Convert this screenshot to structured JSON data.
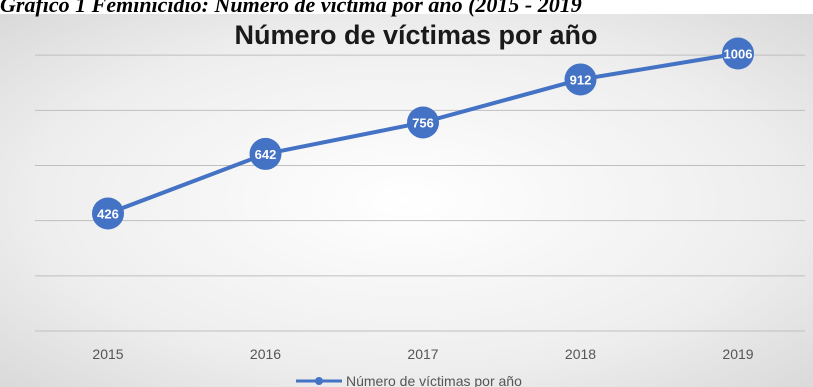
{
  "caption": "Gráfico 1 Feminicidio: Número de víctima por año (2015 - 2019",
  "colors": {
    "series": "#4472C4",
    "gridline": "#bfbfbf",
    "axis_label": "#555555",
    "background_center": "#ffffff",
    "background_edge": "#d6d6d6"
  },
  "chart_data": {
    "type": "line",
    "title": "Número de víctimas por año",
    "xlabel": "",
    "ylabel": "",
    "categories": [
      "2015",
      "2016",
      "2017",
      "2018",
      "2019"
    ],
    "series": [
      {
        "name": "Número de víctimas por año",
        "values": [
          426,
          642,
          756,
          912,
          1006
        ],
        "data_labels": [
          "426",
          "642",
          "756",
          "912",
          "1006"
        ]
      }
    ],
    "ylim": [
      0,
      1200
    ],
    "yticks": [
      0,
      200,
      400,
      600,
      800,
      1000
    ],
    "y_tick_labels_shown": false,
    "grid": true,
    "markers": true,
    "legend": "bottom-center"
  }
}
